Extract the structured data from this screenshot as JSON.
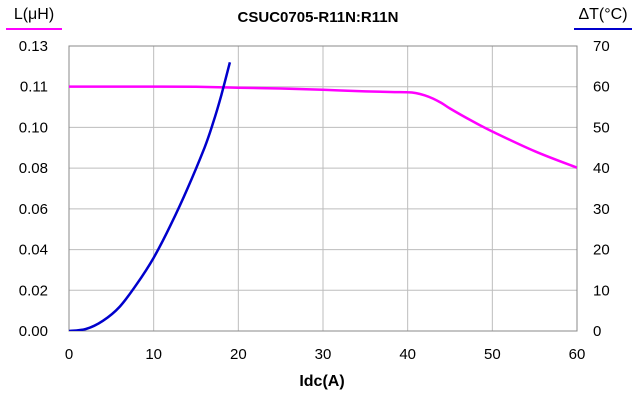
{
  "chart_data": {
    "type": "line",
    "title": "CSUC0705-R11N:R11N",
    "xlabel": "Idc(A)",
    "ylabel_left": "L(μH)",
    "ylabel_right": "ΔT(°C)",
    "xlim": [
      0,
      60
    ],
    "ylim_left": [
      0,
      0.13
    ],
    "ylim_right": [
      0,
      70
    ],
    "x_ticks": [
      "0",
      "10",
      "20",
      "30",
      "40",
      "50",
      "60"
    ],
    "y_left_ticks": [
      "0.00",
      "0.02",
      "0.04",
      "0.06",
      "0.08",
      "0.10",
      "0.11",
      "0.13"
    ],
    "y_right_ticks": [
      "0",
      "10",
      "20",
      "30",
      "40",
      "50",
      "60",
      "70"
    ],
    "grid": true,
    "colors": {
      "inductance": "#ff00ff",
      "temperature": "#0000cc"
    },
    "series": [
      {
        "axis": "left",
        "x": [
          0,
          5,
          10,
          15,
          20,
          25,
          30,
          35,
          38,
          40,
          41,
          42,
          43,
          44,
          45,
          47.5,
          50,
          55,
          60
        ],
        "y": [
          0.1115,
          0.1115,
          0.1115,
          0.1114,
          0.111,
          0.1106,
          0.11,
          0.1093,
          0.109,
          0.1089,
          0.1085,
          0.1075,
          0.106,
          0.104,
          0.1015,
          0.096,
          0.091,
          0.082,
          0.0745
        ]
      },
      {
        "axis": "right",
        "x": [
          0,
          2,
          4,
          6,
          8,
          10,
          12,
          14,
          16,
          17,
          18,
          19
        ],
        "y": [
          0,
          0.5,
          2.5,
          6,
          11.5,
          18,
          26,
          35,
          45,
          51,
          58,
          66
        ]
      }
    ]
  }
}
